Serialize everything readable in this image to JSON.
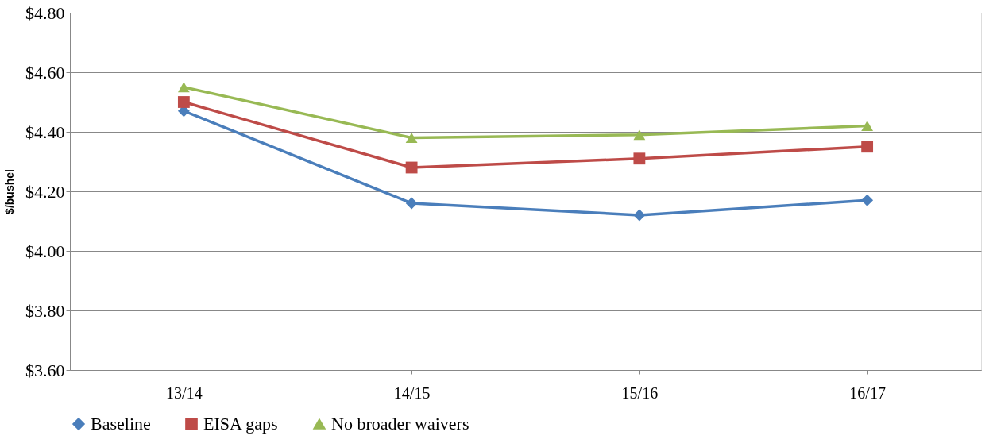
{
  "chart_data": {
    "type": "line",
    "ylabel": "$/bushel",
    "categories": [
      "13/14",
      "14/15",
      "15/16",
      "16/17"
    ],
    "series": [
      {
        "name": "Baseline",
        "color": "#4a7ebb",
        "marker": "diamond",
        "values": [
          4.47,
          4.16,
          4.12,
          4.17
        ]
      },
      {
        "name": "EISA gaps",
        "color": "#be4b48",
        "marker": "square",
        "values": [
          4.5,
          4.28,
          4.31,
          4.35
        ]
      },
      {
        "name": "No broader waivers",
        "color": "#98b954",
        "marker": "triangle",
        "values": [
          4.55,
          4.38,
          4.39,
          4.42
        ]
      }
    ],
    "ylim": [
      3.6,
      4.8
    ],
    "yticks": [
      {
        "value": 3.6,
        "label": "$3.60"
      },
      {
        "value": 3.8,
        "label": "$3.80"
      },
      {
        "value": 4.0,
        "label": "$4.00"
      },
      {
        "value": 4.2,
        "label": "$4.20"
      },
      {
        "value": 4.4,
        "label": "$4.40"
      },
      {
        "value": 4.6,
        "label": "$4.60"
      },
      {
        "value": 4.8,
        "label": "$4.80"
      }
    ],
    "grid": "y",
    "legend": "bottom",
    "line_style": "solid"
  }
}
